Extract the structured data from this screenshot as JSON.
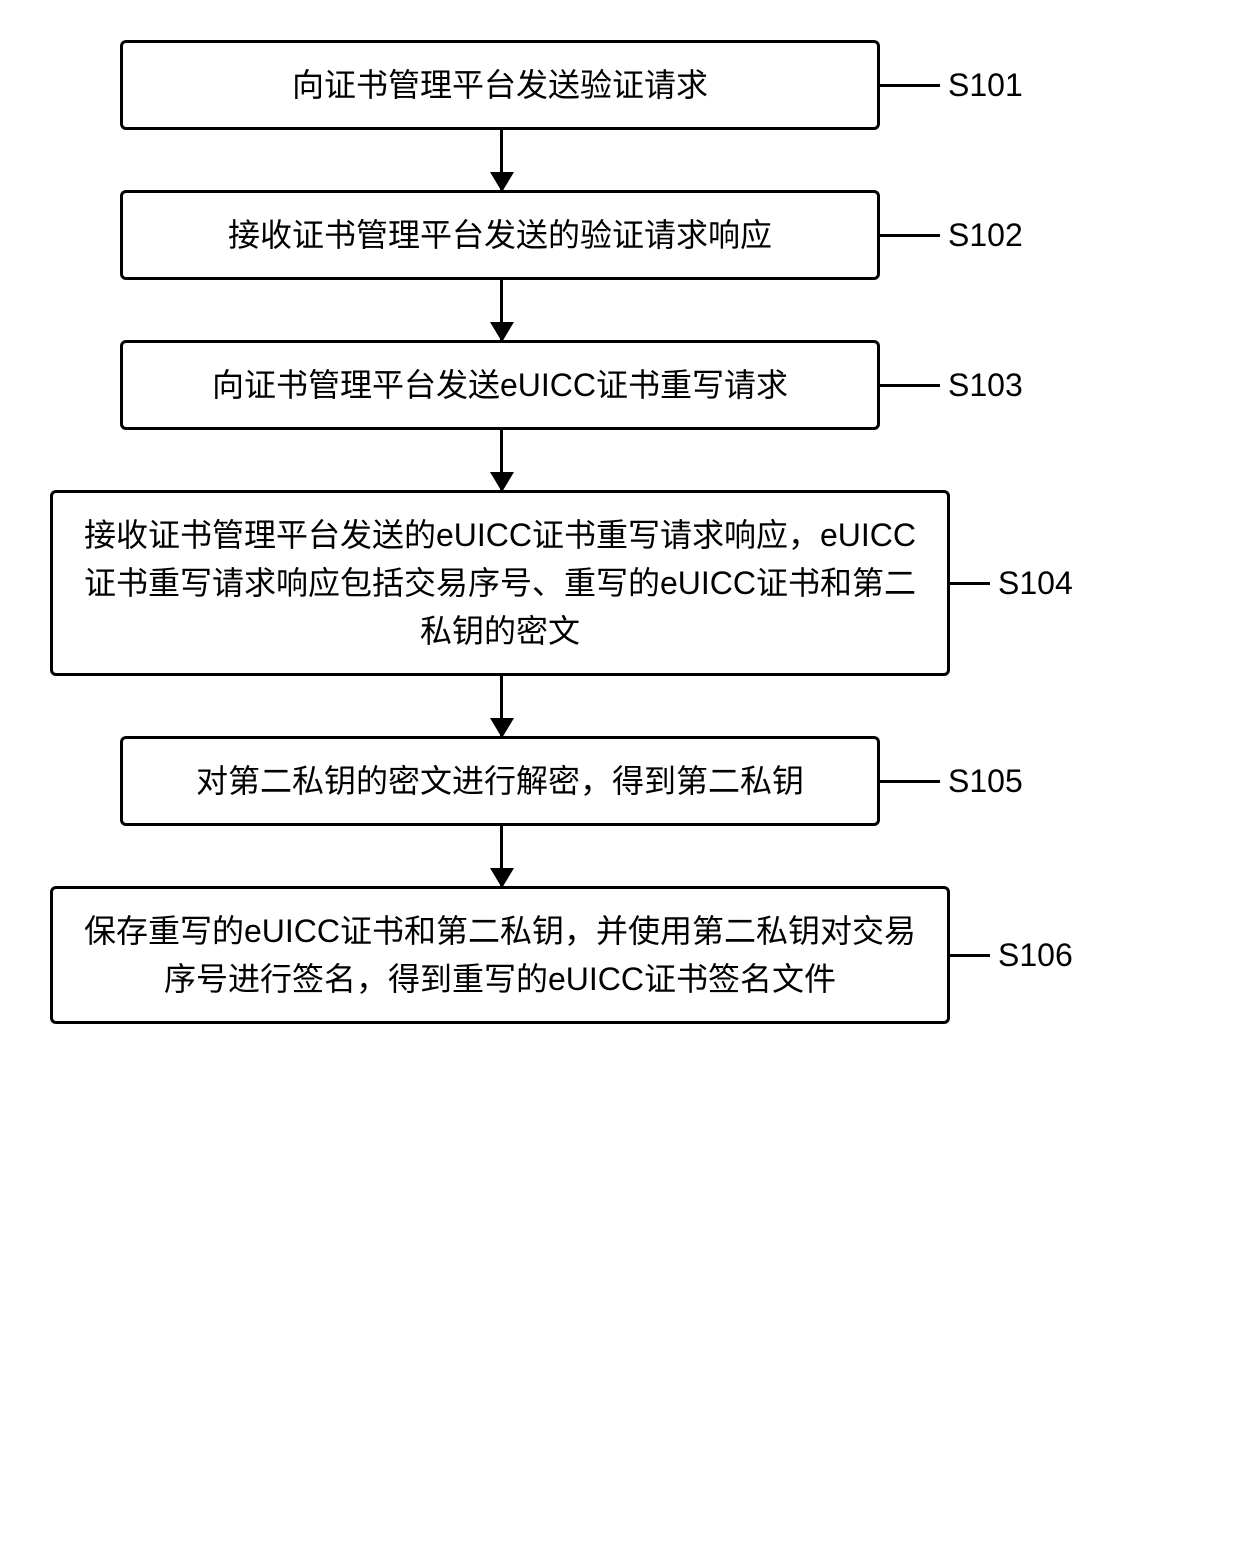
{
  "flowchart": {
    "type": "flowchart",
    "node_border_color": "#000000",
    "node_border_width": 3,
    "node_border_radius": 6,
    "node_bg_color": "#ffffff",
    "text_color": "#000000",
    "label_fontsize": 32,
    "body_fontsize": 32,
    "arrow_height": 60,
    "connector_short_width": 60,
    "box_width_narrow": 760,
    "box_width_wide": 900,
    "steps": [
      {
        "id": "S101",
        "label": "S101",
        "text": "向证书管理平台发送验证请求",
        "box": "narrow",
        "connector": "short"
      },
      {
        "id": "S102",
        "label": "S102",
        "text": "接收证书管理平台发送的验证请求响应",
        "box": "narrow",
        "connector": "short"
      },
      {
        "id": "S103",
        "label": "S103",
        "text": "向证书管理平台发送eUICC证书重写请求",
        "box": "narrow",
        "connector": "short"
      },
      {
        "id": "S104",
        "label": "S104",
        "text": "接收证书管理平台发送的eUICC证书重写请求响应，eUICC证书重写请求响应包括交易序号、重写的eUICC证书和第二私钥的密文",
        "box": "wide",
        "connector": "long"
      },
      {
        "id": "S105",
        "label": "S105",
        "text": "对第二私钥的密文进行解密，得到第二私钥",
        "box": "narrow",
        "connector": "short"
      },
      {
        "id": "S106",
        "label": "S106",
        "text": "保存重写的eUICC证书和第二私钥，并使用第二私钥对交易序号进行签名，得到重写的eUICC证书签名文件",
        "box": "wide",
        "connector": "long"
      }
    ]
  }
}
